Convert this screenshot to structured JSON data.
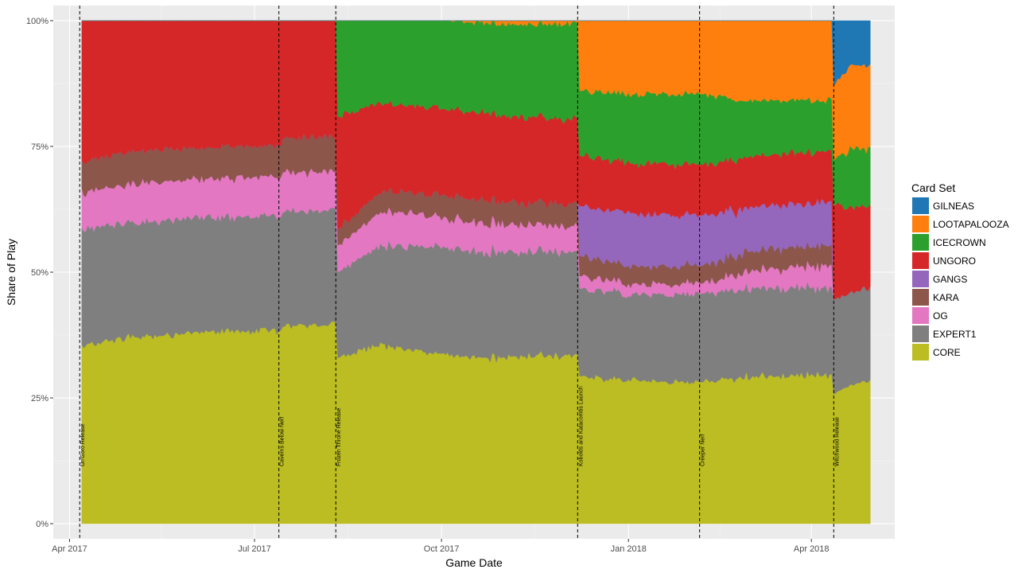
{
  "chart_data": {
    "type": "area",
    "title": "",
    "xlabel": "Game Date",
    "ylabel": "Share of Play",
    "stacked": "normalized",
    "x_range": [
      "2017-03-24",
      "2018-05-12"
    ],
    "y_range": [
      -0.03,
      1.03
    ],
    "x_ticks": [
      {
        "date": "2017-04-01",
        "label": "Apr 2017"
      },
      {
        "date": "2017-07-01",
        "label": "Jul 2017"
      },
      {
        "date": "2017-10-01",
        "label": "Oct 2017"
      },
      {
        "date": "2018-01-01",
        "label": "Jan 2018"
      },
      {
        "date": "2018-04-01",
        "label": "Apr 2018"
      }
    ],
    "x_minor_ticks": [
      "2017-05-16",
      "2017-08-16",
      "2017-11-16",
      "2018-02-15",
      "2018-05-16"
    ],
    "y_ticks": [
      {
        "value": 0,
        "label": "0%"
      },
      {
        "value": 0.25,
        "label": "25%"
      },
      {
        "value": 0.5,
        "label": "50%"
      },
      {
        "value": 0.75,
        "label": "75%"
      },
      {
        "value": 1.0,
        "label": "100%"
      }
    ],
    "legend": {
      "title": "Card Set",
      "position": "right",
      "entries": [
        {
          "name": "GILNEAS",
          "color": "#1f77b4"
        },
        {
          "name": "LOOTAPALOOZA",
          "color": "#ff7f0e"
        },
        {
          "name": "ICECROWN",
          "color": "#2ca02c"
        },
        {
          "name": "UNGORO",
          "color": "#d62728"
        },
        {
          "name": "GANGS",
          "color": "#9467bd"
        },
        {
          "name": "KARA",
          "color": "#8c564b"
        },
        {
          "name": "OG",
          "color": "#e377c2"
        },
        {
          "name": "EXPERT1",
          "color": "#7f7f7f"
        },
        {
          "name": "CORE",
          "color": "#bcbd22"
        }
      ]
    },
    "stack_order_bottom_to_top": [
      "CORE",
      "EXPERT1",
      "OG",
      "KARA",
      "GANGS",
      "UNGORO",
      "ICECROWN",
      "LOOTAPALOOZA",
      "GILNEAS"
    ],
    "x": [
      "2017-04-07",
      "2017-04-10",
      "2017-05-01",
      "2017-06-01",
      "2017-07-14",
      "2017-07-15",
      "2017-08-10",
      "2017-08-11",
      "2017-09-01",
      "2017-10-01",
      "2017-11-01",
      "2017-12-07",
      "2017-12-08",
      "2018-01-01",
      "2018-02-05",
      "2018-02-06",
      "2018-03-01",
      "2018-04-11",
      "2018-04-12",
      "2018-04-20",
      "2018-04-30"
    ],
    "series": [
      {
        "name": "CORE",
        "values": [
          0.33,
          0.32,
          0.335,
          0.34,
          0.34,
          0.345,
          0.35,
          0.31,
          0.315,
          0.3,
          0.3,
          0.3,
          0.295,
          0.285,
          0.28,
          0.28,
          0.29,
          0.295,
          0.26,
          0.275,
          0.285
        ]
      },
      {
        "name": "EXPERT1",
        "values": [
          0.21,
          0.21,
          0.205,
          0.205,
          0.2,
          0.2,
          0.2,
          0.16,
          0.175,
          0.19,
          0.19,
          0.185,
          0.175,
          0.17,
          0.175,
          0.175,
          0.175,
          0.17,
          0.19,
          0.185,
          0.185
        ]
      },
      {
        "name": "OG",
        "values": [
          0.065,
          0.065,
          0.07,
          0.07,
          0.07,
          0.07,
          0.065,
          0.05,
          0.06,
          0.055,
          0.05,
          0.045,
          0.025,
          0.02,
          0.02,
          0.02,
          0.035,
          0.045,
          0.0,
          0.0,
          0.0
        ]
      },
      {
        "name": "KARA",
        "values": [
          0.055,
          0.055,
          0.06,
          0.055,
          0.055,
          0.06,
          0.06,
          0.03,
          0.035,
          0.04,
          0.04,
          0.04,
          0.04,
          0.035,
          0.035,
          0.035,
          0.04,
          0.04,
          0.0,
          0.0,
          0.0
        ]
      },
      {
        "name": "GANGS",
        "values": [
          0.0,
          0.0,
          0.0,
          0.0,
          0.0,
          0.0,
          0.0,
          0.0,
          0.0,
          0.0,
          0.0,
          0.0,
          0.1,
          0.105,
          0.1,
          0.1,
          0.085,
          0.085,
          0.0,
          0.0,
          0.0
        ]
      },
      {
        "name": "UNGORO",
        "values": [
          0.26,
          0.25,
          0.235,
          0.225,
          0.22,
          0.205,
          0.205,
          0.21,
          0.155,
          0.155,
          0.155,
          0.15,
          0.1,
          0.1,
          0.1,
          0.1,
          0.1,
          0.1,
          0.19,
          0.17,
          0.16
        ]
      },
      {
        "name": "ICECROWN",
        "values": [
          0.0,
          0.0,
          0.0,
          0.0,
          0.0,
          0.0,
          0.0,
          0.18,
          0.145,
          0.155,
          0.165,
          0.17,
          0.13,
          0.135,
          0.14,
          0.14,
          0.11,
          0.1,
          0.09,
          0.115,
          0.115
        ]
      },
      {
        "name": "LOOTAPALOOZA",
        "values": [
          0.0,
          0.0,
          0.0,
          0.0,
          0.0,
          0.0,
          0.0,
          0.0,
          0.0,
          0.0,
          0.005,
          0.005,
          0.14,
          0.145,
          0.145,
          0.145,
          0.16,
          0.155,
          0.15,
          0.165,
          0.165
        ]
      },
      {
        "name": "GILNEAS",
        "values": [
          0.0,
          0.0,
          0.0,
          0.0,
          0.0,
          0.0,
          0.0,
          0.0,
          0.0,
          0.0,
          0.0,
          0.0,
          0.0,
          0.0,
          0.0,
          0.0,
          0.0,
          0.0,
          0.13,
          0.09,
          0.09
        ]
      }
    ],
    "annotations": [
      {
        "date": "2017-04-06",
        "label": "Un'Goro Release"
      },
      {
        "date": "2017-07-13",
        "label": "Caverns Below Nerf"
      },
      {
        "date": "2017-08-10",
        "label": "Frozen Throne Release"
      },
      {
        "date": "2017-12-07",
        "label": "Kobolds and Katacombs Launch"
      },
      {
        "date": "2018-02-05",
        "label": "Creeper Nerf"
      },
      {
        "date": "2018-04-12",
        "label": "Witchwood Release"
      }
    ]
  }
}
